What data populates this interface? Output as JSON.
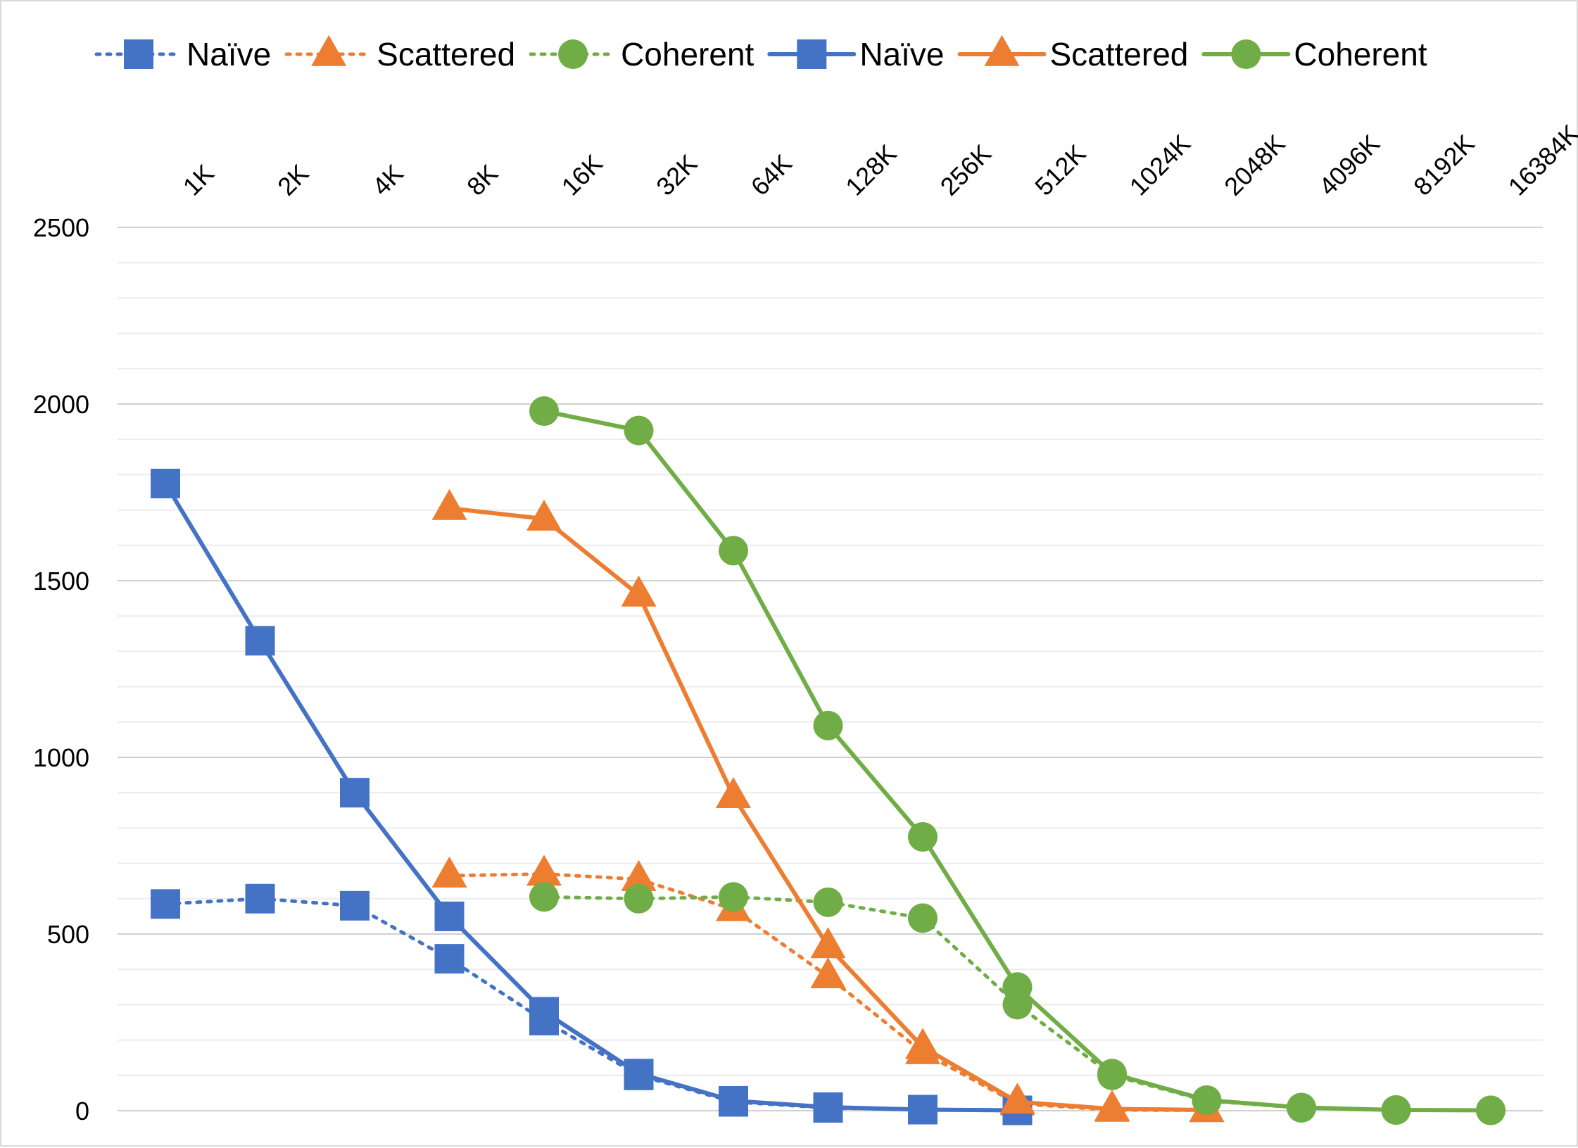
{
  "chart_data": {
    "type": "line",
    "title": "",
    "xlabel": "",
    "ylabel": "",
    "categories": [
      "1K",
      "2K",
      "4K",
      "8K",
      "16K",
      "32K",
      "64K",
      "128K",
      "256K",
      "512K",
      "1024K",
      "2048K",
      "4096K",
      "8192K",
      "16384K"
    ],
    "ylim": [
      0,
      2500
    ],
    "yticks": [
      0,
      500,
      1000,
      1500,
      2000,
      2500
    ],
    "minor_step": 100,
    "grid": true,
    "legend_position": "top",
    "series": [
      {
        "name": "Naïve",
        "style": "dotted",
        "marker": "square",
        "color": "#4472C4",
        "values": [
          585,
          600,
          580,
          430,
          255,
          100,
          25,
          8,
          3,
          1,
          null,
          null,
          null,
          null,
          null
        ]
      },
      {
        "name": "Scattered",
        "style": "dotted",
        "marker": "triangle",
        "color": "#ED7D31",
        "values": [
          null,
          null,
          null,
          665,
          670,
          655,
          570,
          380,
          165,
          20,
          2,
          1,
          null,
          null,
          null
        ]
      },
      {
        "name": "Coherent",
        "style": "dotted",
        "marker": "circle",
        "color": "#70AD47",
        "values": [
          null,
          null,
          null,
          null,
          605,
          600,
          605,
          590,
          545,
          300,
          100,
          28,
          8,
          2,
          1
        ]
      },
      {
        "name": "Naïve",
        "style": "solid",
        "marker": "square",
        "color": "#4472C4",
        "values": [
          1775,
          1330,
          900,
          550,
          280,
          105,
          28,
          10,
          3,
          1,
          null,
          null,
          null,
          null,
          null
        ]
      },
      {
        "name": "Scattered",
        "style": "solid",
        "marker": "triangle",
        "color": "#ED7D31",
        "values": [
          null,
          null,
          null,
          1705,
          1675,
          1460,
          890,
          465,
          180,
          25,
          5,
          2,
          null,
          null,
          null
        ]
      },
      {
        "name": "Coherent",
        "style": "solid",
        "marker": "circle",
        "color": "#70AD47",
        "values": [
          null,
          null,
          null,
          null,
          1980,
          1925,
          1585,
          1090,
          775,
          350,
          105,
          30,
          9,
          2,
          1
        ]
      }
    ]
  }
}
